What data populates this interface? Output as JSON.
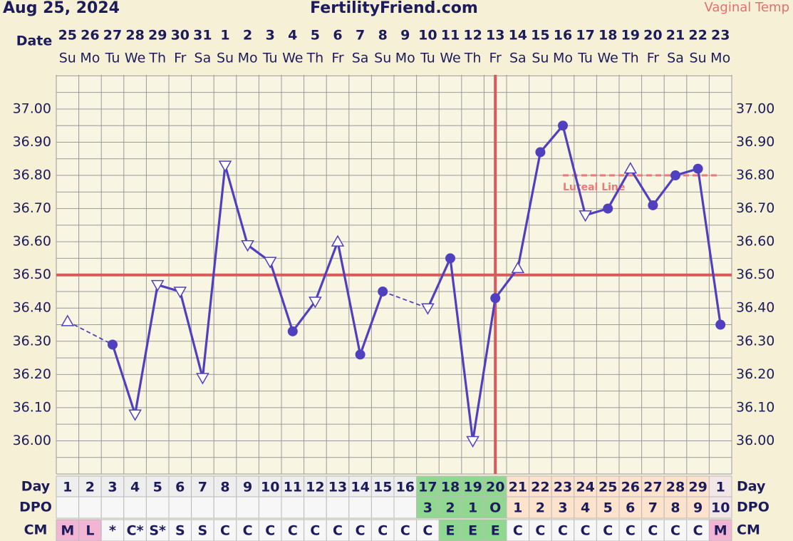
{
  "chart_data": {
    "type": "line",
    "title": "FertilityFriend.com",
    "date": "Aug 25, 2024",
    "temp_label": "Vaginal Temp",
    "row_labels": {
      "date": "Date",
      "day": "Day",
      "dpo": "DPO",
      "cm": "CM"
    },
    "categories": [
      "25",
      "26",
      "27",
      "28",
      "29",
      "30",
      "31",
      "1",
      "2",
      "3",
      "4",
      "5",
      "6",
      "7",
      "8",
      "9",
      "10",
      "11",
      "12",
      "13",
      "14",
      "15",
      "16",
      "17",
      "18",
      "19",
      "20",
      "21",
      "22",
      "23"
    ],
    "weekdays": [
      "Su",
      "Mo",
      "Tu",
      "We",
      "Th",
      "Fr",
      "Sa",
      "Su",
      "Mo",
      "Tu",
      "We",
      "Th",
      "Fr",
      "Sa",
      "Su",
      "Mo",
      "Tu",
      "We",
      "Th",
      "Fr",
      "Sa",
      "Su",
      "Mo",
      "Tu",
      "We",
      "Th",
      "Fr",
      "Sa",
      "Su",
      "Mo"
    ],
    "cycle_days": [
      1,
      2,
      3,
      4,
      5,
      6,
      7,
      8,
      9,
      10,
      11,
      12,
      13,
      14,
      15,
      16,
      17,
      18,
      19,
      20,
      21,
      22,
      23,
      24,
      25,
      26,
      27,
      28,
      29,
      1
    ],
    "dpo": [
      null,
      null,
      null,
      null,
      null,
      null,
      null,
      null,
      null,
      null,
      null,
      null,
      null,
      null,
      null,
      null,
      "3",
      "2",
      "1",
      "O",
      "1",
      "2",
      "3",
      "4",
      "5",
      "6",
      "7",
      "8",
      "9",
      "10"
    ],
    "cm": [
      "M",
      "L",
      "*",
      "C*",
      "S*",
      "S",
      "S",
      "C",
      "C",
      "C",
      "C",
      "C",
      "C",
      "C",
      "C",
      "C",
      "C",
      "E",
      "E",
      "E",
      "C",
      "C",
      "C",
      "C",
      "C",
      "C",
      "C",
      "C",
      "C",
      "M"
    ],
    "day_cell_colors": [
      "#eeeeee",
      "#eeeeee",
      "#eeeeee",
      "#eeeeee",
      "#eeeeee",
      "#eeeeee",
      "#eeeeee",
      "#eeeeee",
      "#eeeeee",
      "#eeeeee",
      "#eeeeee",
      "#eeeeee",
      "#eeeeee",
      "#eeeeee",
      "#eeeeee",
      "#eeeeee",
      "#90d890",
      "#90d890",
      "#90d890",
      "#90d890",
      "#fde2cc",
      "#fde2cc",
      "#fde2cc",
      "#fde2cc",
      "#fde2cc",
      "#fde2cc",
      "#fde2cc",
      "#fde2cc",
      "#fde2cc",
      "#f3e6e6"
    ],
    "cm_cell_colors": [
      "#f2b5d4",
      "#f2b5d4",
      "#f7f7f7",
      "#f7f7f7",
      "#f7f7f7",
      "#f7f7f7",
      "#f7f7f7",
      "#f7f7f7",
      "#f7f7f7",
      "#f7f7f7",
      "#f7f7f7",
      "#f7f7f7",
      "#f7f7f7",
      "#f7f7f7",
      "#f7f7f7",
      "#f7f7f7",
      "#f7f7f7",
      "#90d890",
      "#90d890",
      "#90d890",
      "#f7f7f7",
      "#f7f7f7",
      "#f7f7f7",
      "#f7f7f7",
      "#f7f7f7",
      "#f7f7f7",
      "#f7f7f7",
      "#f7f7f7",
      "#f7f7f7",
      "#f2b5d4"
    ],
    "series": [
      {
        "color": "#5040c0",
        "values": [
          36.36,
          null,
          36.29,
          36.08,
          36.47,
          36.45,
          36.19,
          36.83,
          36.59,
          36.54,
          36.33,
          36.42,
          36.6,
          36.26,
          36.45,
          null,
          36.4,
          36.55,
          36.0,
          36.43,
          36.52,
          36.87,
          36.95,
          36.68,
          36.7,
          36.82,
          36.71,
          36.8,
          36.82,
          36.35
        ],
        "markers": [
          "triangle-up",
          null,
          "filled",
          "triangle-down",
          "triangle-down",
          "triangle-down",
          "triangle-down",
          "triangle-down",
          "triangle-down",
          "triangle-down",
          "filled",
          "triangle-down",
          "triangle-up",
          "filled",
          "filled",
          null,
          "triangle-down",
          "filled",
          "triangle-down",
          "filled",
          "triangle-up",
          "filled",
          "filled",
          "triangle-down",
          "filled",
          "triangle-up",
          "filled",
          "filled",
          "filled",
          "filled"
        ]
      }
    ],
    "ylim": [
      35.9,
      37.103
    ],
    "yticks": [
      {
        "value": 36.0,
        "label": "36.00"
      },
      {
        "value": 36.1,
        "label": "36.10"
      },
      {
        "value": 36.2,
        "label": "36.20"
      },
      {
        "value": 36.3,
        "label": "36.30"
      },
      {
        "value": 36.4,
        "label": "36.40"
      },
      {
        "value": 36.5,
        "label": "36.50"
      },
      {
        "value": 36.6,
        "label": "36.60"
      },
      {
        "value": 36.7,
        "label": "36.70"
      },
      {
        "value": 36.8,
        "label": "36.80"
      },
      {
        "value": 36.9,
        "label": "36.90"
      },
      {
        "value": 37.0,
        "label": "37.00"
      }
    ],
    "grid": true,
    "coverline": {
      "value": 36.5,
      "color": "#d85a5a"
    },
    "ovulation_date": "13",
    "luteal_line": {
      "value": 36.8,
      "label": "Luteal Line",
      "from": "16",
      "to": "23",
      "color": "#ee7777"
    }
  }
}
